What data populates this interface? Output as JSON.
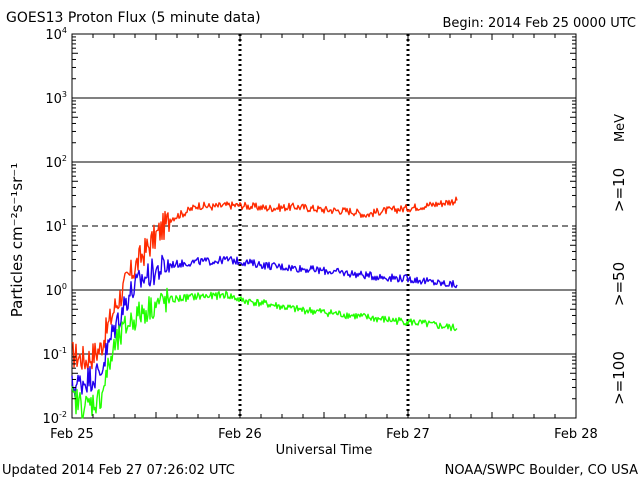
{
  "header": {
    "title": "GOES13 Proton Flux (5 minute data)",
    "begin": "Begin: 2014 Feb 25 0000 UTC"
  },
  "footer": {
    "updated": "Updated 2014 Feb 27 07:26:02 UTC",
    "credit": "NOAA/SWPC Boulder, CO USA"
  },
  "colors": {
    "ge10": "#ff2a00",
    "ge50": "#2200ee",
    "ge100": "#22ff00",
    "axis": "#000000"
  },
  "chart_data": {
    "type": "line",
    "title": "GOES13 Proton Flux (5 minute data)",
    "xlabel": "Universal Time",
    "ylabel": "Particles cm⁻²s⁻¹sr⁻¹",
    "yscale": "log",
    "ylim": [
      0.01,
      10000
    ],
    "xlim": [
      "2014-02-25 00:00",
      "2014-02-28 00:00"
    ],
    "x_ticks": [
      "Feb 25",
      "Feb 26",
      "Feb 27",
      "Feb 28"
    ],
    "y_ticks": [
      {
        "base": "10",
        "exp": "-2"
      },
      {
        "base": "10",
        "exp": "-1"
      },
      {
        "base": "10",
        "exp": "0"
      },
      {
        "base": "10",
        "exp": "1"
      },
      {
        "base": "10",
        "exp": "2"
      },
      {
        "base": "10",
        "exp": "3"
      },
      {
        "base": "10",
        "exp": "4"
      }
    ],
    "threshold": {
      "value": 10,
      "style": "dashed"
    },
    "unit_label": "MeV",
    "series": [
      {
        "name": ">=10",
        "color": "#ff2a00",
        "x": [
          "2014-02-25 00:00",
          "2014-02-25 02:00",
          "2014-02-25 04:00",
          "2014-02-25 06:00",
          "2014-02-25 08:00",
          "2014-02-25 10:00",
          "2014-02-25 12:00",
          "2014-02-25 14:00",
          "2014-02-25 16:00",
          "2014-02-25 18:00",
          "2014-02-25 20:00",
          "2014-02-25 22:00",
          "2014-02-26 00:00",
          "2014-02-26 04:00",
          "2014-02-26 08:00",
          "2014-02-26 12:00",
          "2014-02-26 16:00",
          "2014-02-26 18:00",
          "2014-02-26 20:00",
          "2014-02-27 00:00",
          "2014-02-27 04:00",
          "2014-02-27 07:00"
        ],
        "y": [
          0.1,
          0.08,
          0.12,
          0.5,
          1.5,
          3.5,
          7,
          13,
          16,
          21,
          20,
          21,
          21,
          19,
          20,
          18,
          17,
          15,
          17,
          19,
          22,
          25
        ]
      },
      {
        "name": ">=50",
        "color": "#2200ee",
        "x": [
          "2014-02-25 00:00",
          "2014-02-25 02:00",
          "2014-02-25 04:00",
          "2014-02-25 06:00",
          "2014-02-25 08:00",
          "2014-02-25 10:00",
          "2014-02-25 12:00",
          "2014-02-25 14:00",
          "2014-02-25 16:00",
          "2014-02-25 18:00",
          "2014-02-25 20:00",
          "2014-02-25 22:00",
          "2014-02-26 00:00",
          "2014-02-26 04:00",
          "2014-02-26 08:00",
          "2014-02-26 12:00",
          "2014-02-26 16:00",
          "2014-02-26 20:00",
          "2014-02-27 00:00",
          "2014-02-27 04:00",
          "2014-02-27 07:00"
        ],
        "y": [
          0.03,
          0.04,
          0.05,
          0.25,
          0.8,
          1.5,
          2.0,
          2.5,
          2.6,
          2.8,
          2.8,
          3.0,
          2.8,
          2.4,
          2.2,
          2.0,
          1.8,
          1.6,
          1.5,
          1.3,
          1.2
        ]
      },
      {
        "name": ">=100",
        "color": "#22ff00",
        "x": [
          "2014-02-25 00:00",
          "2014-02-25 02:00",
          "2014-02-25 04:00",
          "2014-02-25 06:00",
          "2014-02-25 08:00",
          "2014-02-25 10:00",
          "2014-02-25 12:00",
          "2014-02-25 14:00",
          "2014-02-25 16:00",
          "2014-02-25 18:00",
          "2014-02-25 20:00",
          "2014-02-25 22:00",
          "2014-02-26 00:00",
          "2014-02-26 04:00",
          "2014-02-26 08:00",
          "2014-02-26 12:00",
          "2014-02-26 16:00",
          "2014-02-26 20:00",
          "2014-02-27 00:00",
          "2014-02-27 04:00",
          "2014-02-27 07:00"
        ],
        "y": [
          0.02,
          0.015,
          0.02,
          0.12,
          0.3,
          0.45,
          0.6,
          0.7,
          0.75,
          0.8,
          0.8,
          0.85,
          0.7,
          0.6,
          0.5,
          0.45,
          0.4,
          0.35,
          0.32,
          0.28,
          0.25
        ]
      }
    ],
    "grid": true,
    "legend": "right, vertical"
  }
}
